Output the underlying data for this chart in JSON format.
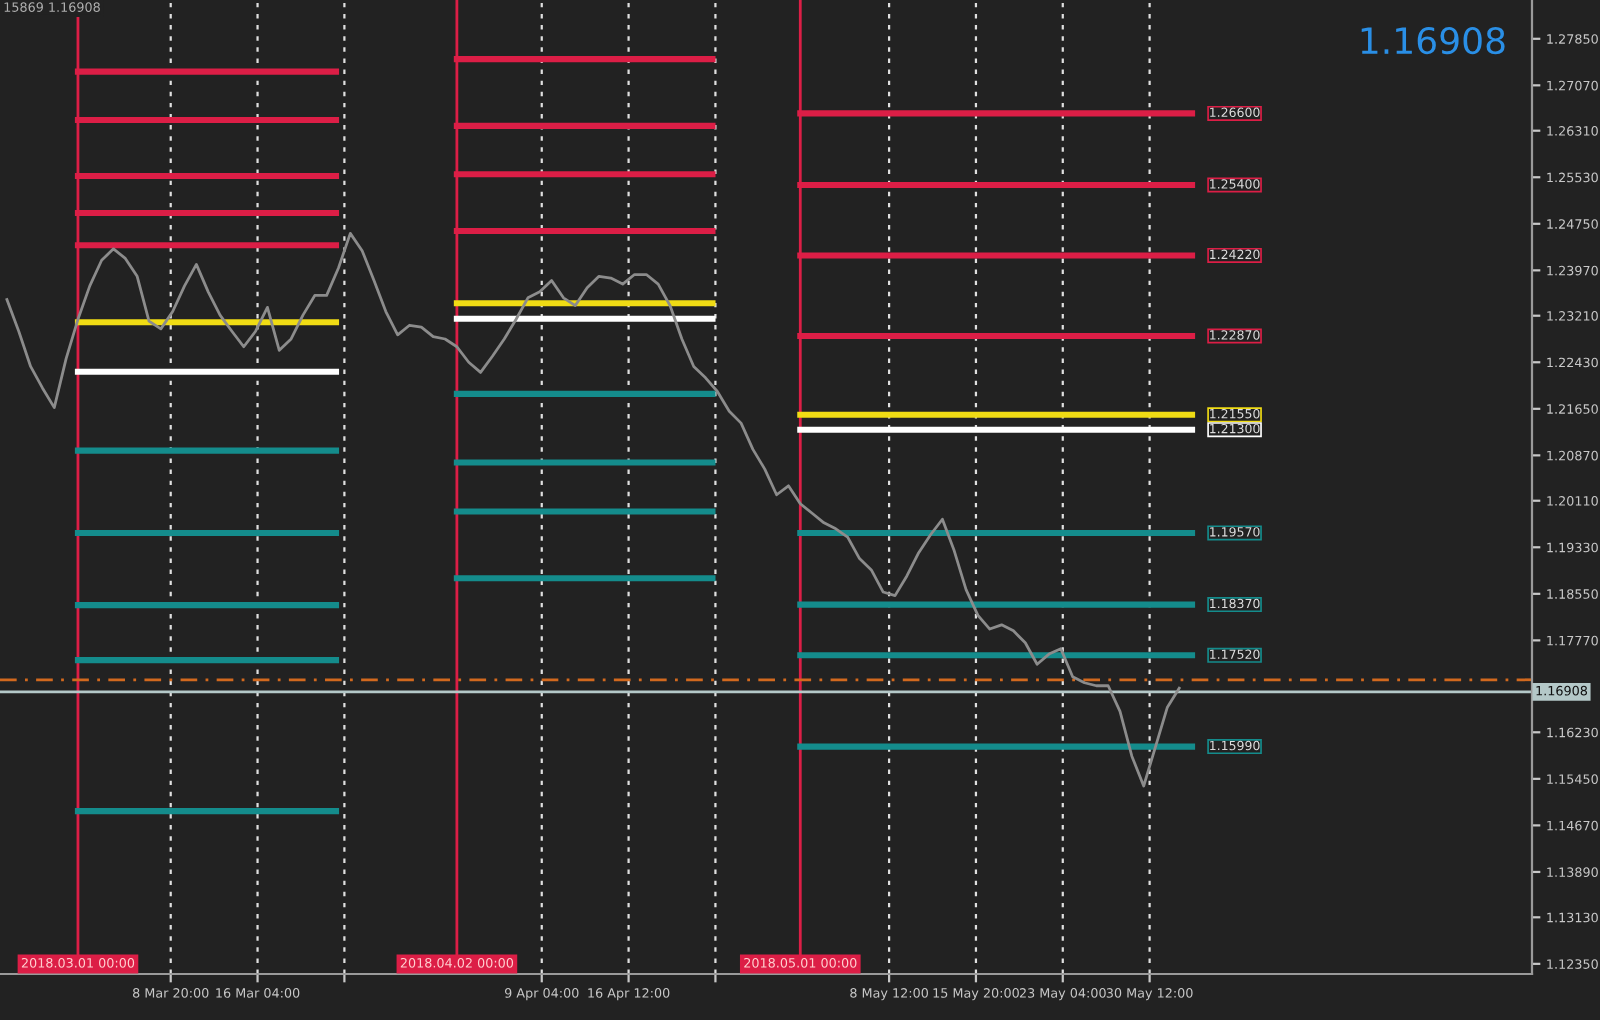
{
  "chart_data": {
    "type": "line",
    "xlim": [
      "2018-02-22T10:00",
      "2018-07-01T19:00"
    ],
    "ylim": [
      1.1218,
      1.285
    ],
    "yticks": [
      {
        "value": 1.2785,
        "label": "1.27850"
      },
      {
        "value": 1.2707,
        "label": "1.27070"
      },
      {
        "value": 1.2631,
        "label": "1.26310"
      },
      {
        "value": 1.2553,
        "label": "1.25530"
      },
      {
        "value": 1.2475,
        "label": "1.24750"
      },
      {
        "value": 1.2397,
        "label": "1.23970"
      },
      {
        "value": 1.2321,
        "label": "1.23210"
      },
      {
        "value": 1.2243,
        "label": "1.22430"
      },
      {
        "value": 1.2165,
        "label": "1.21650"
      },
      {
        "value": 1.2087,
        "label": "1.20870"
      },
      {
        "value": 1.2011,
        "label": "1.20110"
      },
      {
        "value": 1.1933,
        "label": "1.19330"
      },
      {
        "value": 1.1855,
        "label": "1.18550"
      },
      {
        "value": 1.1777,
        "label": "1.17770"
      },
      {
        "value": 1.1623,
        "label": "1.16230"
      },
      {
        "value": 1.1545,
        "label": "1.15450"
      },
      {
        "value": 1.1467,
        "label": "1.14670"
      },
      {
        "value": 1.1389,
        "label": "1.13890"
      },
      {
        "value": 1.1313,
        "label": "1.13130"
      },
      {
        "value": 1.1235,
        "label": "1.12350"
      }
    ],
    "xticks": [
      {
        "value": "2018-03-08T20:00",
        "label": "8 Mar 20:00"
      },
      {
        "value": "2018-03-16T04:00",
        "label": "16 Mar 04:00"
      },
      {
        "value": "2018-03-23T12:00",
        "label": null
      },
      {
        "value": "2018-04-09T04:00",
        "label": "9 Apr 04:00"
      },
      {
        "value": "2018-04-16T12:00",
        "label": "16 Apr 12:00"
      },
      {
        "value": "2018-04-23T20:00",
        "label": null
      },
      {
        "value": "2018-05-08T12:00",
        "label": "8 May 12:00"
      },
      {
        "value": "2018-05-15T20:00",
        "label": "15 May 20:00"
      },
      {
        "value": "2018-05-23T04:00",
        "label": "23 May 04:00"
      },
      {
        "value": "2018-05-30T12:00",
        "label": "30 May 12:00"
      }
    ],
    "grid": "x",
    "marker": "none",
    "line_style": "solid",
    "legend": false,
    "series": [
      {
        "color": "#8c8c8c",
        "x": [
          "2018-02-23",
          "2018-02-24",
          "2018-02-25",
          "2018-02-26",
          "2018-02-27",
          "2018-02-28",
          "2018-03-01",
          "2018-03-02",
          "2018-03-03",
          "2018-03-04",
          "2018-03-05",
          "2018-03-06",
          "2018-03-07",
          "2018-03-08",
          "2018-03-09",
          "2018-03-10",
          "2018-03-11",
          "2018-03-12",
          "2018-03-13",
          "2018-03-14",
          "2018-03-15",
          "2018-03-16",
          "2018-03-17",
          "2018-03-18",
          "2018-03-19",
          "2018-03-20",
          "2018-03-21",
          "2018-03-22",
          "2018-03-23",
          "2018-03-24",
          "2018-03-25",
          "2018-03-26",
          "2018-03-27",
          "2018-03-28",
          "2018-03-29",
          "2018-03-30",
          "2018-03-31",
          "2018-04-01",
          "2018-04-02",
          "2018-04-03",
          "2018-04-04",
          "2018-04-05",
          "2018-04-06",
          "2018-04-07",
          "2018-04-08",
          "2018-04-09",
          "2018-04-10",
          "2018-04-11",
          "2018-04-12",
          "2018-04-13",
          "2018-04-14",
          "2018-04-15",
          "2018-04-16",
          "2018-04-17",
          "2018-04-18",
          "2018-04-19",
          "2018-04-20",
          "2018-04-21",
          "2018-04-22",
          "2018-04-23",
          "2018-04-24",
          "2018-04-25",
          "2018-04-26",
          "2018-04-27",
          "2018-04-28",
          "2018-04-29",
          "2018-04-30",
          "2018-05-01",
          "2018-05-02",
          "2018-05-03",
          "2018-05-04",
          "2018-05-05",
          "2018-05-06",
          "2018-05-07",
          "2018-05-08",
          "2018-05-09",
          "2018-05-10",
          "2018-05-11",
          "2018-05-12",
          "2018-05-13",
          "2018-05-14",
          "2018-05-15",
          "2018-05-16",
          "2018-05-17",
          "2018-05-18",
          "2018-05-19",
          "2018-05-20",
          "2018-05-21",
          "2018-05-22",
          "2018-05-23",
          "2018-05-24",
          "2018-05-25",
          "2018-05-26",
          "2018-05-27",
          "2018-05-28",
          "2018-05-29",
          "2018-05-30",
          "2018-05-31",
          "2018-06-01",
          "2018-06-02"
        ],
        "values": [
          1.2348,
          1.2295,
          1.2236,
          1.22,
          1.2167,
          1.2249,
          1.2315,
          1.2371,
          1.2414,
          1.2433,
          1.2417,
          1.2387,
          1.2312,
          1.2299,
          1.2328,
          1.2371,
          1.2407,
          1.2361,
          1.2322,
          1.2295,
          1.2269,
          1.2295,
          1.2335,
          1.2263,
          1.2282,
          1.2322,
          1.2355,
          1.2355,
          1.2401,
          1.2459,
          1.243,
          1.238,
          1.2328,
          1.2289,
          1.2305,
          1.2302,
          1.2286,
          1.2282,
          1.2269,
          1.2243,
          1.2226,
          1.2253,
          1.2282,
          1.2315,
          1.2351,
          1.2361,
          1.238,
          1.2351,
          1.2338,
          1.2368,
          1.2387,
          1.2384,
          1.2374,
          1.239,
          1.239,
          1.2374,
          1.2338,
          1.2282,
          1.2236,
          1.2217,
          1.2194,
          1.2161,
          1.2141,
          1.2097,
          1.2064,
          1.2021,
          1.2036,
          1.2006,
          1.199,
          1.1974,
          1.1964,
          1.195,
          1.1914,
          1.1895,
          1.1858,
          1.1852,
          1.1885,
          1.1924,
          1.1954,
          1.198,
          1.1927,
          1.1862,
          1.1819,
          1.1796,
          1.1803,
          1.1793,
          1.1773,
          1.1737,
          1.1754,
          1.1763,
          1.1716,
          1.1706,
          1.1701,
          1.1701,
          1.1658,
          1.1583,
          1.1533,
          1.1599,
          1.1665,
          1.1697
        ]
      },
      {
        "color": "#dc1e46",
        "x": [
          "2018-03-01",
          "2018-03-22T19:00"
        ],
        "values": [
          1.273,
          1.273
        ]
      },
      {
        "color": "#dc1e46",
        "x": [
          "2018-03-01",
          "2018-03-22T19:00"
        ],
        "values": [
          1.2649,
          1.2649
        ]
      },
      {
        "color": "#dc1e46",
        "x": [
          "2018-03-01",
          "2018-03-22T19:00"
        ],
        "values": [
          1.2555,
          1.2555
        ]
      },
      {
        "color": "#dc1e46",
        "x": [
          "2018-03-01",
          "2018-03-22T19:00"
        ],
        "values": [
          1.2493,
          1.2493
        ]
      },
      {
        "color": "#dc1e46",
        "x": [
          "2018-03-01",
          "2018-03-22T19:00"
        ],
        "values": [
          1.2439,
          1.2439
        ]
      },
      {
        "color": "#f0dc14",
        "x": [
          "2018-03-01",
          "2018-03-22T19:00"
        ],
        "values": [
          1.231,
          1.231
        ]
      },
      {
        "color": "#ffffff",
        "x": [
          "2018-03-01",
          "2018-03-22T19:00"
        ],
        "values": [
          1.2227,
          1.2227
        ]
      },
      {
        "color": "#148c8c",
        "x": [
          "2018-03-01",
          "2018-03-22T19:00"
        ],
        "values": [
          1.2095,
          1.2095
        ]
      },
      {
        "color": "#148c8c",
        "x": [
          "2018-03-01",
          "2018-03-22T19:00"
        ],
        "values": [
          1.1957,
          1.1957
        ]
      },
      {
        "color": "#148c8c",
        "x": [
          "2018-03-01",
          "2018-03-22T19:00"
        ],
        "values": [
          1.1836,
          1.1836
        ]
      },
      {
        "color": "#148c8c",
        "x": [
          "2018-03-01",
          "2018-03-22T19:00"
        ],
        "values": [
          1.1744,
          1.1744
        ]
      },
      {
        "color": "#148c8c",
        "x": [
          "2018-03-01",
          "2018-03-22T19:00"
        ],
        "values": [
          1.1491,
          1.1491
        ]
      },
      {
        "color": "#dc1e46",
        "x": [
          "2018-04-02",
          "2018-04-23T14:00"
        ],
        "values": [
          1.2751,
          1.2751
        ]
      },
      {
        "color": "#dc1e46",
        "x": [
          "2018-04-02",
          "2018-04-23T14:00"
        ],
        "values": [
          1.2639,
          1.2639
        ]
      },
      {
        "color": "#dc1e46",
        "x": [
          "2018-04-02",
          "2018-04-23T14:00"
        ],
        "values": [
          1.2558,
          1.2558
        ]
      },
      {
        "color": "#dc1e46",
        "x": [
          "2018-04-02",
          "2018-04-23T14:00"
        ],
        "values": [
          1.2463,
          1.2463
        ]
      },
      {
        "color": "#f0dc14",
        "x": [
          "2018-04-02",
          "2018-04-23T14:00"
        ],
        "values": [
          1.2342,
          1.2342
        ]
      },
      {
        "color": "#ffffff",
        "x": [
          "2018-04-02",
          "2018-04-23T14:00"
        ],
        "values": [
          1.2316,
          1.2316
        ]
      },
      {
        "color": "#148c8c",
        "x": [
          "2018-04-02",
          "2018-04-23T14:00"
        ],
        "values": [
          1.219,
          1.219
        ]
      },
      {
        "color": "#148c8c",
        "x": [
          "2018-04-02",
          "2018-04-23T14:00"
        ],
        "values": [
          1.2075,
          1.2075
        ]
      },
      {
        "color": "#148c8c",
        "x": [
          "2018-04-02",
          "2018-04-23T14:00"
        ],
        "values": [
          1.1993,
          1.1993
        ]
      },
      {
        "color": "#148c8c",
        "x": [
          "2018-04-02",
          "2018-04-23T14:00"
        ],
        "values": [
          1.1881,
          1.1881
        ]
      },
      {
        "color": "#dc1e46",
        "x": [
          "2018-05-01",
          "2018-06-03T02:00"
        ],
        "values": [
          1.266,
          1.266
        ],
        "value_labels": [
          null,
          "1.26600"
        ]
      },
      {
        "color": "#dc1e46",
        "x": [
          "2018-05-01",
          "2018-06-03T02:00"
        ],
        "values": [
          1.254,
          1.254
        ],
        "value_labels": [
          null,
          "1.25400"
        ]
      },
      {
        "color": "#dc1e46",
        "x": [
          "2018-05-01",
          "2018-06-03T02:00"
        ],
        "values": [
          1.2422,
          1.2422
        ],
        "value_labels": [
          null,
          "1.24220"
        ]
      },
      {
        "color": "#dc1e46",
        "x": [
          "2018-05-01",
          "2018-06-03T02:00"
        ],
        "values": [
          1.2287,
          1.2287
        ],
        "value_labels": [
          null,
          "1.22870"
        ]
      },
      {
        "color": "#f0dc14",
        "x": [
          "2018-05-01",
          "2018-06-03T02:00"
        ],
        "values": [
          1.2155,
          1.2155
        ],
        "value_labels": [
          null,
          "1.21550"
        ]
      },
      {
        "color": "#ffffff",
        "x": [
          "2018-05-01",
          "2018-06-03T02:00"
        ],
        "values": [
          1.213,
          1.213
        ],
        "value_labels": [
          null,
          "1.21300"
        ]
      },
      {
        "color": "#148c8c",
        "x": [
          "2018-05-01",
          "2018-06-03T02:00"
        ],
        "values": [
          1.1957,
          1.1957
        ],
        "value_labels": [
          null,
          "1.19570"
        ]
      },
      {
        "color": "#148c8c",
        "x": [
          "2018-05-01",
          "2018-06-03T02:00"
        ],
        "values": [
          1.1837,
          1.1837
        ],
        "value_labels": [
          null,
          "1.18370"
        ]
      },
      {
        "color": "#148c8c",
        "x": [
          "2018-05-01",
          "2018-06-03T02:00"
        ],
        "values": [
          1.1752,
          1.1752
        ],
        "value_labels": [
          null,
          "1.17520"
        ]
      },
      {
        "color": "#148c8c",
        "x": [
          "2018-05-01",
          "2018-06-03T02:00"
        ],
        "values": [
          1.1599,
          1.1599
        ],
        "value_labels": [
          null,
          "1.15990"
        ]
      }
    ],
    "ref_lines": [
      {
        "axis": "x",
        "value": "2018-03-01",
        "label": "2018.03.01 00:00",
        "color": "#dc1e46"
      },
      {
        "axis": "x",
        "value": "2018-04-02",
        "label": "2018.04.02 00:00",
        "color": "#dc1e46"
      },
      {
        "axis": "x",
        "value": "2018-05-01",
        "label": "2018.05.01 00:00",
        "color": "#dc1e46"
      },
      {
        "axis": "y",
        "value": 1.1711,
        "color": "#d2691e",
        "line_style": "dashed"
      },
      {
        "axis": "y",
        "value": 1.16908,
        "label": "1.16908",
        "color": "#b4c8c8"
      }
    ],
    "annotations": [
      "1.16908",
      "15869 1.16908"
    ]
  }
}
